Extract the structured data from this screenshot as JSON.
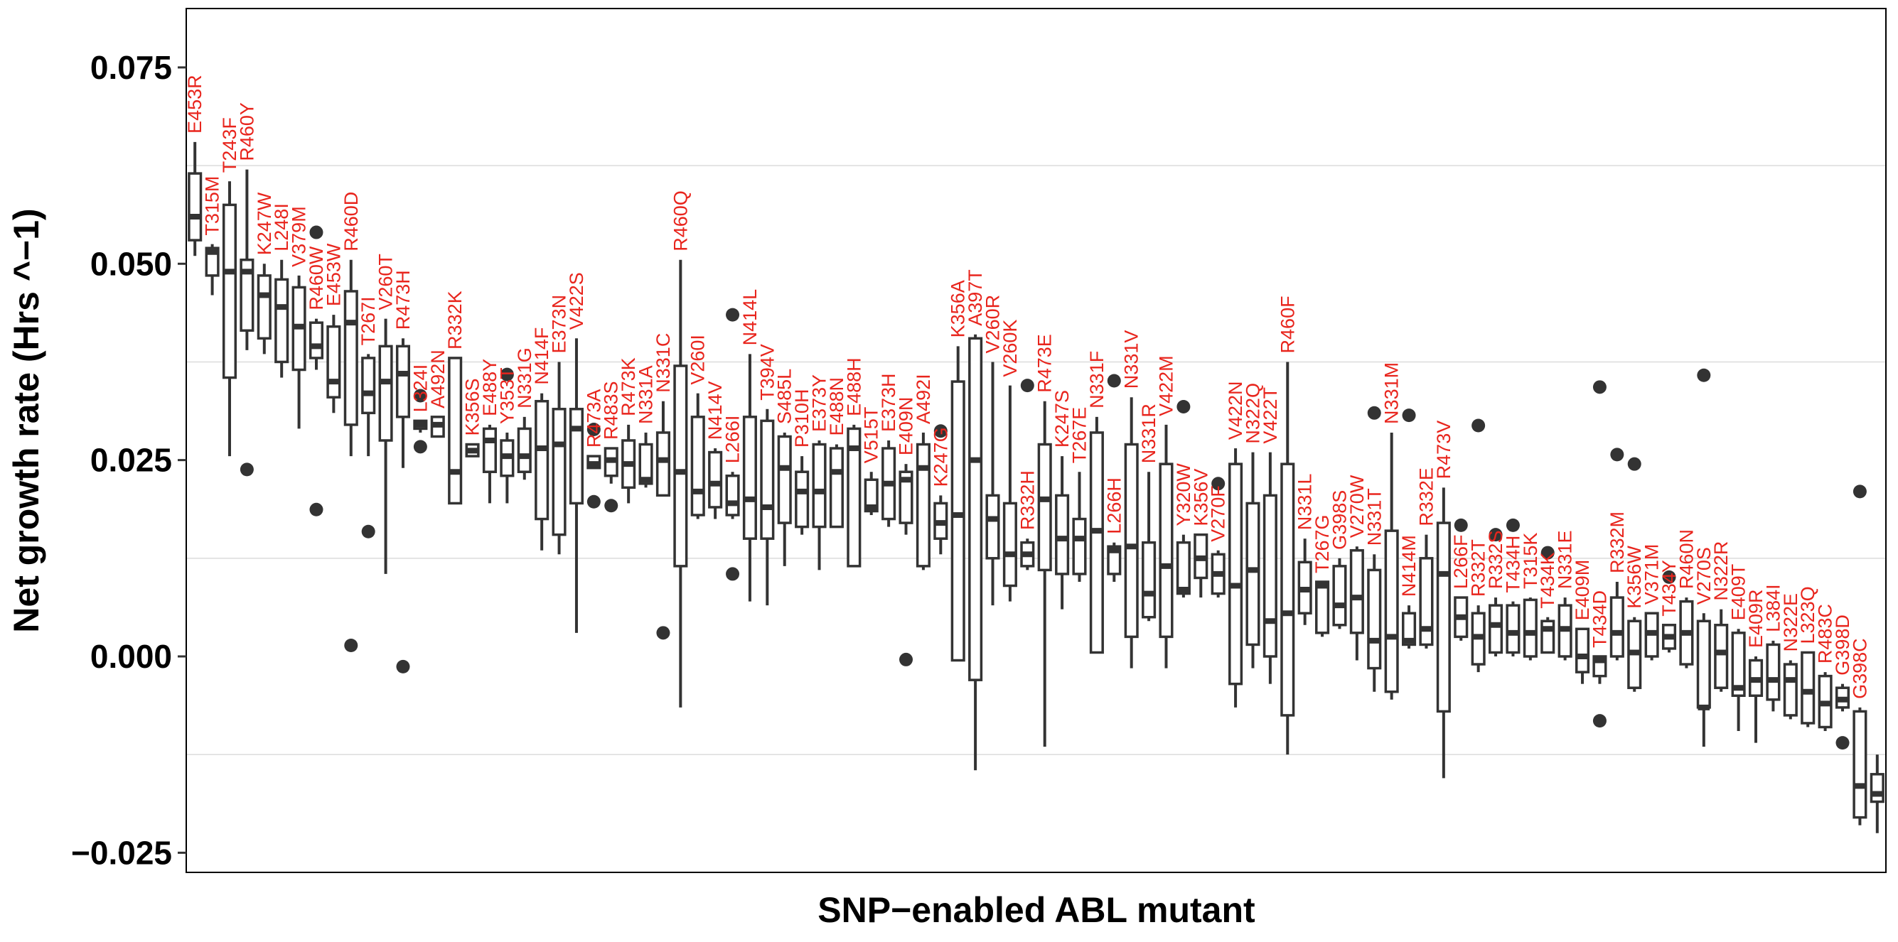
{
  "chart_data": {
    "type": "box",
    "xlabel": "SNP−enabled ABL mutant",
    "ylabel": "Net growth rate (Hrs ^−1)",
    "ylim": [
      -0.0275,
      0.0825
    ],
    "yticks": [
      0.075,
      0.05,
      0.025,
      0.0,
      -0.025
    ],
    "ytick_labels": [
      "0.075",
      "0.050",
      "0.025",
      "0.000",
      "−0.025"
    ],
    "minor_grid": [
      0.0625,
      0.0375,
      0.0125,
      -0.0125
    ],
    "grid": true,
    "box_color": "#333333",
    "label_color": "#e8251d",
    "categories": [
      {
        "label": "E453R",
        "q1": 0.053,
        "median": 0.056,
        "q3": 0.0615,
        "lo": 0.051,
        "hi": 0.0655,
        "out": []
      },
      {
        "label": "T315M",
        "q1": 0.0485,
        "median": 0.0515,
        "q3": 0.052,
        "lo": 0.046,
        "hi": 0.0525,
        "out": []
      },
      {
        "label": "T243F",
        "q1": 0.0355,
        "median": 0.049,
        "q3": 0.0575,
        "lo": 0.0255,
        "hi": 0.0605,
        "out": []
      },
      {
        "label": "R460Y",
        "q1": 0.0415,
        "median": 0.049,
        "q3": 0.0505,
        "lo": 0.039,
        "hi": 0.062,
        "out": [
          0.0238
        ]
      },
      {
        "label": "K247W",
        "q1": 0.0405,
        "median": 0.046,
        "q3": 0.0485,
        "lo": 0.0385,
        "hi": 0.05,
        "out": []
      },
      {
        "label": "L248I",
        "q1": 0.0375,
        "median": 0.0445,
        "q3": 0.048,
        "lo": 0.0355,
        "hi": 0.0505,
        "out": []
      },
      {
        "label": "V379M",
        "q1": 0.0365,
        "median": 0.042,
        "q3": 0.047,
        "lo": 0.029,
        "hi": 0.0485,
        "out": []
      },
      {
        "label": "R460W",
        "q1": 0.038,
        "median": 0.0395,
        "q3": 0.0425,
        "lo": 0.0365,
        "hi": 0.043,
        "out": [
          0.054,
          0.0187
        ]
      },
      {
        "label": "E453W",
        "q1": 0.033,
        "median": 0.035,
        "q3": 0.042,
        "lo": 0.031,
        "hi": 0.0435,
        "out": []
      },
      {
        "label": "R460D",
        "q1": 0.0295,
        "median": 0.0425,
        "q3": 0.0465,
        "lo": 0.0255,
        "hi": 0.0505,
        "out": [
          0.0014
        ]
      },
      {
        "label": "T267I",
        "q1": 0.031,
        "median": 0.0335,
        "q3": 0.038,
        "lo": 0.0255,
        "hi": 0.0385,
        "out": [
          0.0159
        ]
      },
      {
        "label": "V260T",
        "q1": 0.0275,
        "median": 0.035,
        "q3": 0.0395,
        "lo": 0.0105,
        "hi": 0.043,
        "out": []
      },
      {
        "label": "R473H",
        "q1": 0.0305,
        "median": 0.036,
        "q3": 0.0395,
        "lo": 0.024,
        "hi": 0.0405,
        "out": [
          -0.0013
        ]
      },
      {
        "label": "L324I",
        "q1": 0.029,
        "median": 0.0295,
        "q3": 0.03,
        "lo": 0.0285,
        "hi": 0.03,
        "out": [
          0.0332,
          0.0267
        ]
      },
      {
        "label": "A492N",
        "q1": 0.028,
        "median": 0.0295,
        "q3": 0.0305,
        "lo": 0.028,
        "hi": 0.0305,
        "out": []
      },
      {
        "label": "R332K",
        "q1": 0.0195,
        "median": 0.0235,
        "q3": 0.038,
        "lo": 0.0195,
        "hi": 0.038,
        "out": []
      },
      {
        "label": "K356S",
        "q1": 0.0255,
        "median": 0.0262,
        "q3": 0.027,
        "lo": 0.0255,
        "hi": 0.027,
        "out": []
      },
      {
        "label": "E488Y",
        "q1": 0.0235,
        "median": 0.0275,
        "q3": 0.029,
        "lo": 0.0195,
        "hi": 0.0295,
        "out": []
      },
      {
        "label": "Y353T",
        "q1": 0.023,
        "median": 0.0255,
        "q3": 0.0275,
        "lo": 0.0195,
        "hi": 0.0285,
        "out": [
          0.0359
        ]
      },
      {
        "label": "N331G",
        "q1": 0.0235,
        "median": 0.0255,
        "q3": 0.029,
        "lo": 0.0225,
        "hi": 0.0305,
        "out": []
      },
      {
        "label": "N414F",
        "q1": 0.0175,
        "median": 0.0265,
        "q3": 0.0325,
        "lo": 0.0135,
        "hi": 0.0335,
        "out": []
      },
      {
        "label": "E373N",
        "q1": 0.0155,
        "median": 0.027,
        "q3": 0.0315,
        "lo": 0.013,
        "hi": 0.0375,
        "out": []
      },
      {
        "label": "V422S",
        "q1": 0.0195,
        "median": 0.029,
        "q3": 0.0315,
        "lo": 0.003,
        "hi": 0.0405,
        "out": []
      },
      {
        "label": "R473A",
        "q1": 0.024,
        "median": 0.0245,
        "q3": 0.0255,
        "lo": 0.024,
        "hi": 0.0255,
        "out": [
          0.0289,
          0.0197
        ]
      },
      {
        "label": "R483S",
        "q1": 0.023,
        "median": 0.025,
        "q3": 0.0265,
        "lo": 0.022,
        "hi": 0.0265,
        "out": [
          0.0192
        ]
      },
      {
        "label": "R473K",
        "q1": 0.0215,
        "median": 0.0245,
        "q3": 0.0275,
        "lo": 0.0195,
        "hi": 0.0295,
        "out": []
      },
      {
        "label": "N331A",
        "q1": 0.022,
        "median": 0.0225,
        "q3": 0.027,
        "lo": 0.0215,
        "hi": 0.0285,
        "out": []
      },
      {
        "label": "N331C",
        "q1": 0.0205,
        "median": 0.025,
        "q3": 0.0285,
        "lo": 0.0205,
        "hi": 0.0325,
        "out": [
          0.003
        ]
      },
      {
        "label": "R460Q",
        "q1": 0.0115,
        "median": 0.0235,
        "q3": 0.037,
        "lo": -0.0065,
        "hi": 0.0505,
        "out": []
      },
      {
        "label": "V260I",
        "q1": 0.018,
        "median": 0.021,
        "q3": 0.0305,
        "lo": 0.0175,
        "hi": 0.0335,
        "out": []
      },
      {
        "label": "N414V",
        "q1": 0.019,
        "median": 0.022,
        "q3": 0.026,
        "lo": 0.0175,
        "hi": 0.0265,
        "out": []
      },
      {
        "label": "L266I",
        "q1": 0.018,
        "median": 0.0195,
        "q3": 0.023,
        "lo": 0.0175,
        "hi": 0.0235,
        "out": [
          0.0105,
          0.0435
        ]
      },
      {
        "label": "N414L",
        "q1": 0.015,
        "median": 0.02,
        "q3": 0.0305,
        "lo": 0.007,
        "hi": 0.0385,
        "out": []
      },
      {
        "label": "T394V",
        "q1": 0.015,
        "median": 0.019,
        "q3": 0.03,
        "lo": 0.0065,
        "hi": 0.0315,
        "out": []
      },
      {
        "label": "S485L",
        "q1": 0.017,
        "median": 0.024,
        "q3": 0.028,
        "lo": 0.0115,
        "hi": 0.0285,
        "out": []
      },
      {
        "label": "P310H",
        "q1": 0.0165,
        "median": 0.021,
        "q3": 0.0235,
        "lo": 0.0155,
        "hi": 0.0255,
        "out": []
      },
      {
        "label": "E373Y",
        "q1": 0.0165,
        "median": 0.021,
        "q3": 0.027,
        "lo": 0.011,
        "hi": 0.0275,
        "out": []
      },
      {
        "label": "E488N",
        "q1": 0.0165,
        "median": 0.0235,
        "q3": 0.0265,
        "lo": 0.0165,
        "hi": 0.027,
        "out": []
      },
      {
        "label": "E488H",
        "q1": 0.0115,
        "median": 0.0265,
        "q3": 0.029,
        "lo": 0.0115,
        "hi": 0.0295,
        "out": []
      },
      {
        "label": "V515T",
        "q1": 0.0185,
        "median": 0.019,
        "q3": 0.0225,
        "lo": 0.018,
        "hi": 0.0235,
        "out": []
      },
      {
        "label": "E373H",
        "q1": 0.0175,
        "median": 0.022,
        "q3": 0.0265,
        "lo": 0.0165,
        "hi": 0.0275,
        "out": []
      },
      {
        "label": "E409N",
        "q1": 0.017,
        "median": 0.0225,
        "q3": 0.0235,
        "lo": 0.0155,
        "hi": 0.0245,
        "out": [
          -0.0004
        ]
      },
      {
        "label": "A492I",
        "q1": 0.0115,
        "median": 0.024,
        "q3": 0.027,
        "lo": 0.011,
        "hi": 0.0285,
        "out": []
      },
      {
        "label": "K247G",
        "q1": 0.015,
        "median": 0.017,
        "q3": 0.0195,
        "lo": 0.013,
        "hi": 0.0205,
        "out": [
          0.0287
        ]
      },
      {
        "label": "K356A",
        "q1": -0.0005,
        "median": 0.018,
        "q3": 0.035,
        "lo": -0.0005,
        "hi": 0.0395,
        "out": []
      },
      {
        "label": "A397T",
        "q1": -0.003,
        "median": 0.025,
        "q3": 0.0405,
        "lo": -0.0145,
        "hi": 0.041,
        "out": []
      },
      {
        "label": "V260R",
        "q1": 0.0125,
        "median": 0.0175,
        "q3": 0.0205,
        "lo": 0.0065,
        "hi": 0.0375,
        "out": []
      },
      {
        "label": "V260K",
        "q1": 0.009,
        "median": 0.013,
        "q3": 0.0195,
        "lo": 0.007,
        "hi": 0.0345,
        "out": []
      },
      {
        "label": "R332H",
        "q1": 0.0115,
        "median": 0.013,
        "q3": 0.0145,
        "lo": 0.011,
        "hi": 0.015,
        "out": [
          0.0345
        ]
      },
      {
        "label": "R473E",
        "q1": 0.011,
        "median": 0.02,
        "q3": 0.027,
        "lo": -0.0115,
        "hi": 0.0325,
        "out": []
      },
      {
        "label": "K247S",
        "q1": 0.0105,
        "median": 0.015,
        "q3": 0.0205,
        "lo": 0.006,
        "hi": 0.0255,
        "out": []
      },
      {
        "label": "T267E",
        "q1": 0.0105,
        "median": 0.015,
        "q3": 0.0175,
        "lo": 0.0095,
        "hi": 0.0235,
        "out": []
      },
      {
        "label": "N331F",
        "q1": 0.0005,
        "median": 0.016,
        "q3": 0.0285,
        "lo": 0.0005,
        "hi": 0.0305,
        "out": []
      },
      {
        "label": "L266H",
        "q1": 0.0105,
        "median": 0.0135,
        "q3": 0.014,
        "lo": 0.0095,
        "hi": 0.0145,
        "out": [
          0.0351
        ]
      },
      {
        "label": "N331V",
        "q1": 0.0025,
        "median": 0.014,
        "q3": 0.027,
        "lo": -0.0015,
        "hi": 0.033,
        "out": []
      },
      {
        "label": "N331R",
        "q1": 0.005,
        "median": 0.008,
        "q3": 0.0145,
        "lo": 0.0045,
        "hi": 0.0235,
        "out": []
      },
      {
        "label": "V422M",
        "q1": 0.0025,
        "median": 0.0115,
        "q3": 0.0245,
        "lo": -0.0015,
        "hi": 0.0295,
        "out": []
      },
      {
        "label": "Y320W",
        "q1": 0.008,
        "median": 0.0085,
        "q3": 0.0145,
        "lo": 0.0075,
        "hi": 0.0155,
        "out": [
          0.0318
        ]
      },
      {
        "label": "K356V",
        "q1": 0.01,
        "median": 0.0125,
        "q3": 0.0155,
        "lo": 0.0075,
        "hi": 0.0155,
        "out": []
      },
      {
        "label": "V270F",
        "q1": 0.008,
        "median": 0.0105,
        "q3": 0.013,
        "lo": 0.0075,
        "hi": 0.0135,
        "out": [
          0.022
        ]
      },
      {
        "label": "V422N",
        "q1": -0.0035,
        "median": 0.009,
        "q3": 0.0245,
        "lo": -0.0065,
        "hi": 0.0265,
        "out": []
      },
      {
        "label": "N322Q",
        "q1": 0.0015,
        "median": 0.011,
        "q3": 0.0195,
        "lo": -0.0015,
        "hi": 0.026,
        "out": []
      },
      {
        "label": "V422T",
        "q1": 0.0,
        "median": 0.0045,
        "q3": 0.0205,
        "lo": -0.0035,
        "hi": 0.026,
        "out": []
      },
      {
        "label": "R460F",
        "q1": -0.0075,
        "median": 0.0055,
        "q3": 0.0245,
        "lo": -0.0125,
        "hi": 0.0375,
        "out": []
      },
      {
        "label": "N331L",
        "q1": 0.0055,
        "median": 0.0085,
        "q3": 0.012,
        "lo": 0.004,
        "hi": 0.015,
        "out": []
      },
      {
        "label": "T267G",
        "q1": 0.003,
        "median": 0.009,
        "q3": 0.0095,
        "lo": 0.0025,
        "hi": 0.0095,
        "out": []
      },
      {
        "label": "G398S",
        "q1": 0.004,
        "median": 0.0065,
        "q3": 0.0115,
        "lo": 0.0035,
        "hi": 0.0125,
        "out": []
      },
      {
        "label": "V270W",
        "q1": 0.003,
        "median": 0.0075,
        "q3": 0.0135,
        "lo": -0.0005,
        "hi": 0.014,
        "out": []
      },
      {
        "label": "N331T",
        "q1": -0.0015,
        "median": 0.002,
        "q3": 0.011,
        "lo": -0.0045,
        "hi": 0.013,
        "out": [
          0.031
        ]
      },
      {
        "label": "N331M",
        "q1": -0.0045,
        "median": 0.0025,
        "q3": 0.016,
        "lo": -0.0055,
        "hi": 0.0285,
        "out": []
      },
      {
        "label": "N414M",
        "q1": 0.0015,
        "median": 0.002,
        "q3": 0.0055,
        "lo": 0.001,
        "hi": 0.0065,
        "out": [
          0.0307
        ]
      },
      {
        "label": "R332E",
        "q1": 0.0015,
        "median": 0.0035,
        "q3": 0.0125,
        "lo": 0.001,
        "hi": 0.0155,
        "out": []
      },
      {
        "label": "R473V",
        "q1": -0.007,
        "median": 0.0105,
        "q3": 0.017,
        "lo": -0.0155,
        "hi": 0.0215,
        "out": []
      },
      {
        "label": "L266F",
        "q1": 0.0025,
        "median": 0.005,
        "q3": 0.0075,
        "lo": 0.002,
        "hi": 0.0075,
        "out": [
          0.0167
        ]
      },
      {
        "label": "R332T",
        "q1": -0.001,
        "median": 0.0025,
        "q3": 0.0055,
        "lo": -0.002,
        "hi": 0.0065,
        "out": [
          0.0294
        ]
      },
      {
        "label": "R332S",
        "q1": 0.0005,
        "median": 0.004,
        "q3": 0.0065,
        "lo": 0.0,
        "hi": 0.0075,
        "out": [
          0.0155
        ]
      },
      {
        "label": "T434H",
        "q1": 0.0005,
        "median": 0.003,
        "q3": 0.0065,
        "lo": 0.0,
        "hi": 0.007,
        "out": [
          0.0167
        ]
      },
      {
        "label": "T315K",
        "q1": 0.0,
        "median": 0.003,
        "q3": 0.0072,
        "lo": -0.0005,
        "hi": 0.0075,
        "out": []
      },
      {
        "label": "T434K",
        "q1": 0.0005,
        "median": 0.0035,
        "q3": 0.0045,
        "lo": 0.0005,
        "hi": 0.005,
        "out": [
          0.0132
        ]
      },
      {
        "label": "N331E",
        "q1": 0.0,
        "median": 0.0035,
        "q3": 0.0065,
        "lo": -0.0005,
        "hi": 0.0075,
        "out": []
      },
      {
        "label": "E409M",
        "q1": -0.002,
        "median": 0.0,
        "q3": 0.0035,
        "lo": -0.0035,
        "hi": 0.0035,
        "out": []
      },
      {
        "label": "T434D",
        "q1": -0.0025,
        "median": -0.0005,
        "q3": 0.0,
        "lo": -0.0035,
        "hi": 0.0,
        "out": [
          0.0343,
          -0.0082
        ]
      },
      {
        "label": "R332M",
        "q1": 0.0,
        "median": 0.003,
        "q3": 0.0075,
        "lo": -0.0005,
        "hi": 0.0095,
        "out": [
          0.0257
        ]
      },
      {
        "label": "K356W",
        "q1": -0.004,
        "median": 0.0005,
        "q3": 0.0045,
        "lo": -0.0045,
        "hi": 0.005,
        "out": [
          0.0245
        ]
      },
      {
        "label": "V371M",
        "q1": 0.0,
        "median": 0.003,
        "q3": 0.0055,
        "lo": -0.0005,
        "hi": 0.0055,
        "out": []
      },
      {
        "label": "T434Y",
        "q1": 0.001,
        "median": 0.0025,
        "q3": 0.004,
        "lo": 0.0005,
        "hi": 0.004,
        "out": [
          0.0101
        ]
      },
      {
        "label": "R460N",
        "q1": -0.001,
        "median": 0.003,
        "q3": 0.007,
        "lo": -0.0015,
        "hi": 0.0075,
        "out": []
      },
      {
        "label": "V270S",
        "q1": -0.0065,
        "median": -0.0065,
        "q3": 0.0045,
        "lo": -0.0115,
        "hi": 0.0055,
        "out": [
          0.0358
        ]
      },
      {
        "label": "N322R",
        "q1": -0.004,
        "median": 0.0005,
        "q3": 0.004,
        "lo": -0.0045,
        "hi": 0.006,
        "out": []
      },
      {
        "label": "E409T",
        "q1": -0.005,
        "median": -0.004,
        "q3": 0.003,
        "lo": -0.0095,
        "hi": 0.0035,
        "out": []
      },
      {
        "label": "E409R",
        "q1": -0.005,
        "median": -0.003,
        "q3": -0.0005,
        "lo": -0.011,
        "hi": 0.0,
        "out": []
      },
      {
        "label": "L384I",
        "q1": -0.0055,
        "median": -0.003,
        "q3": 0.0015,
        "lo": -0.007,
        "hi": 0.002,
        "out": []
      },
      {
        "label": "N322E",
        "q1": -0.0075,
        "median": -0.003,
        "q3": -0.001,
        "lo": -0.008,
        "hi": -0.0005,
        "out": []
      },
      {
        "label": "L323Q",
        "q1": -0.0085,
        "median": -0.0045,
        "q3": 0.0005,
        "lo": -0.009,
        "hi": 0.0005,
        "out": []
      },
      {
        "label": "R483C",
        "q1": -0.009,
        "median": -0.006,
        "q3": -0.0025,
        "lo": -0.0095,
        "hi": -0.002,
        "out": []
      },
      {
        "label": "G398D",
        "q1": -0.0065,
        "median": -0.0055,
        "q3": -0.004,
        "lo": -0.007,
        "hi": -0.0035,
        "out": [
          -0.011
        ]
      },
      {
        "label": "G398C",
        "q1": -0.0205,
        "median": -0.0165,
        "q3": -0.007,
        "lo": -0.0215,
        "hi": -0.0065,
        "out": [
          0.021
        ]
      },
      {
        "label": "",
        "q1": -0.0185,
        "median": -0.0175,
        "q3": -0.015,
        "lo": -0.0225,
        "hi": -0.0125,
        "out": []
      }
    ]
  }
}
